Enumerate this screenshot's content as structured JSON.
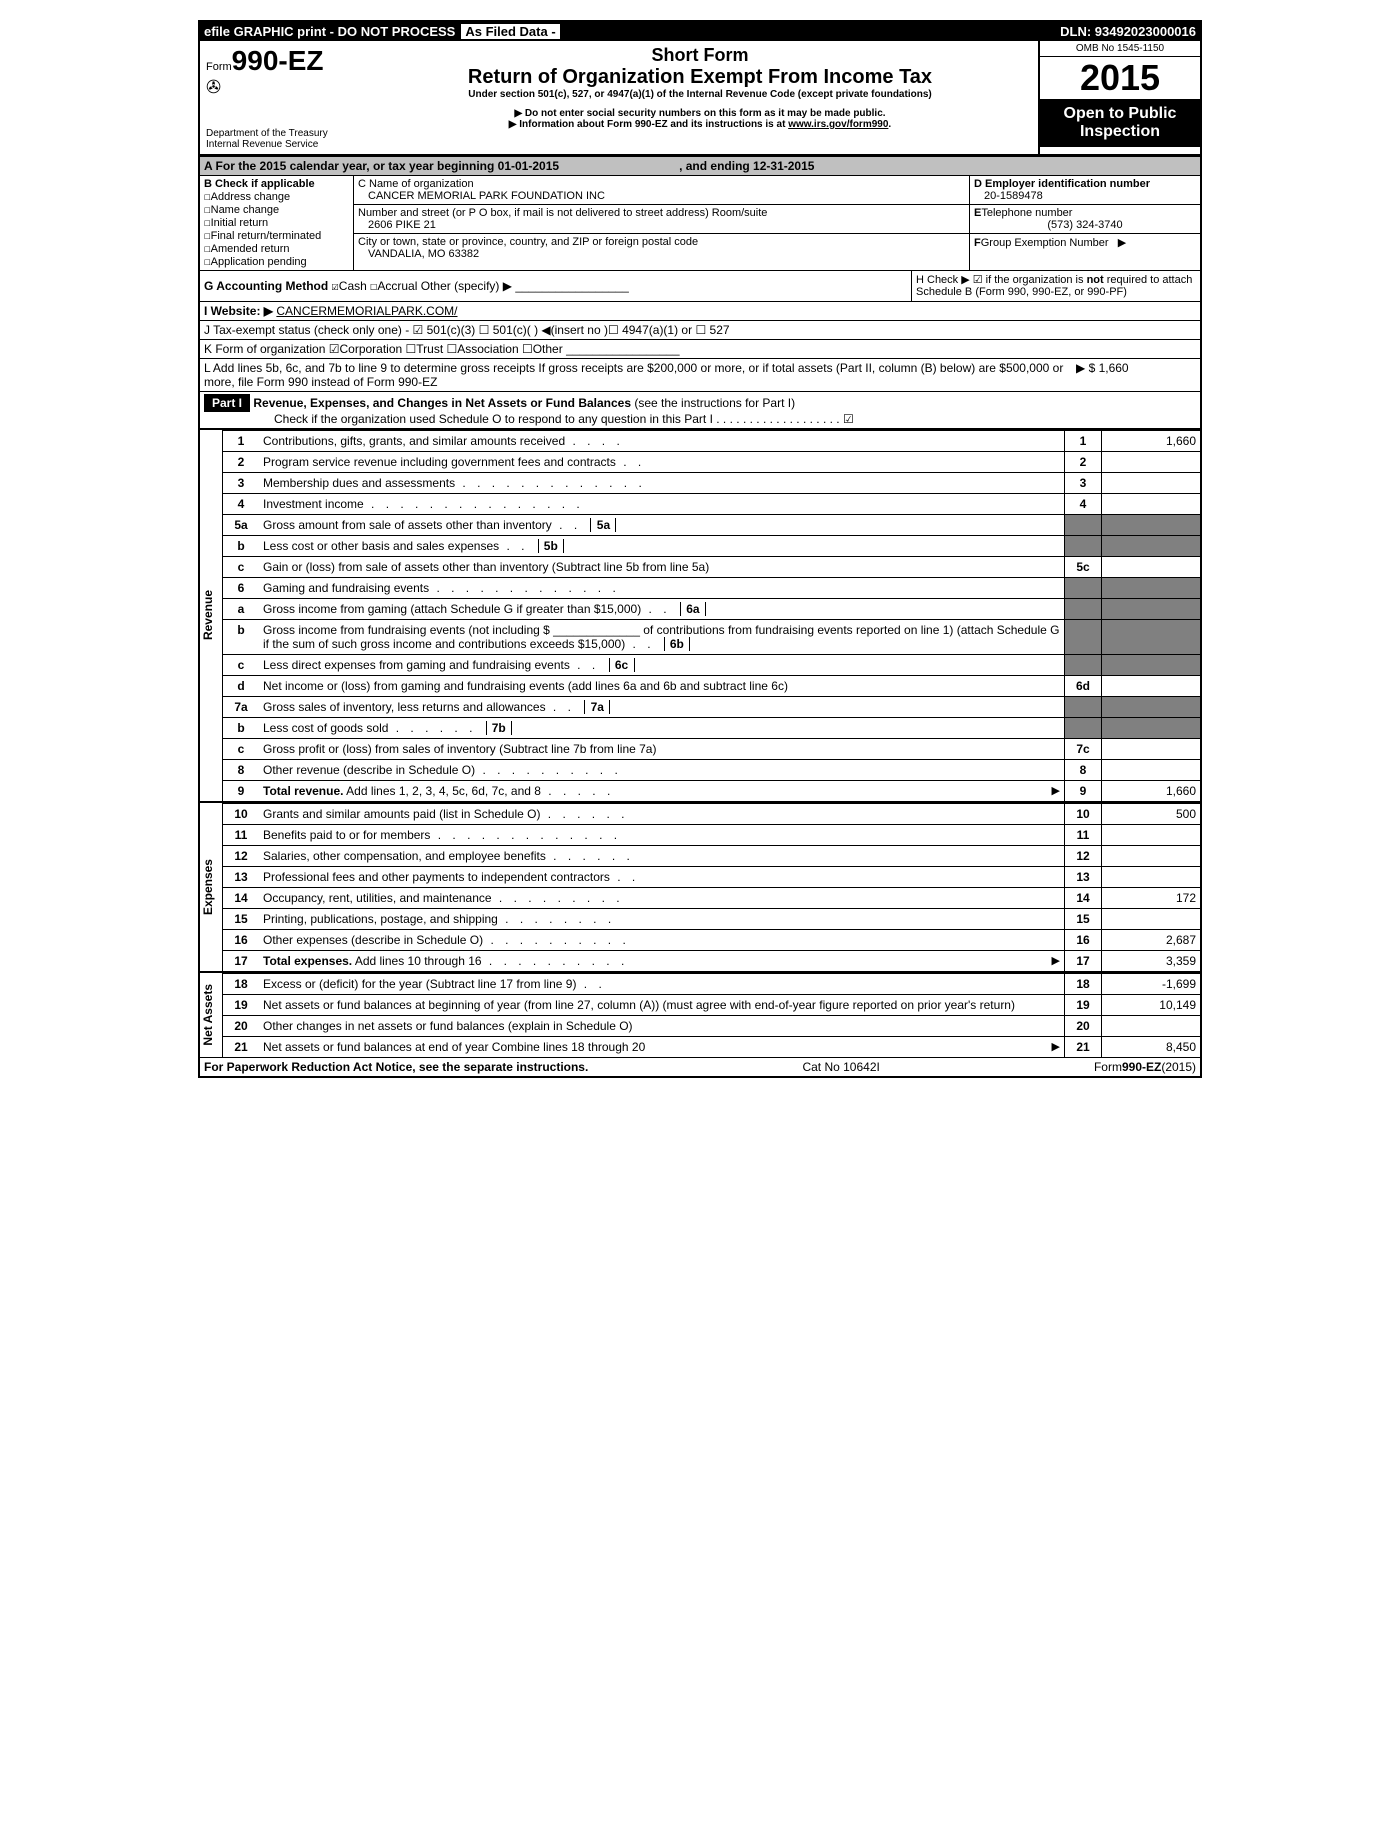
{
  "topbar": {
    "efile": "efile GRAPHIC print - DO NOT PROCESS",
    "asfiled": "As Filed Data -",
    "dln": "DLN: 93492023000016"
  },
  "header": {
    "form": "Form",
    "formno": "990-EZ",
    "dept": "Department of the Treasury",
    "irs": "Internal Revenue Service",
    "title": "Short Form",
    "subtitle": "Return of Organization Exempt From Income Tax",
    "section": "Under section 501(c), 527, or 4947(a)(1) of the Internal Revenue Code (except private foundations)",
    "warn1": "▶ Do not enter social security numbers on this form as it may be made public.",
    "warn2": "▶ Information about Form 990-EZ and its instructions is at ",
    "warn2link": "www.irs.gov/form990",
    "omb": "OMB No  1545-1150",
    "year": "2015",
    "inspect": "Open to Public Inspection"
  },
  "A": {
    "text": "A  For the 2015 calendar year, or tax year beginning 01-01-2015",
    "end": ", and ending 12-31-2015"
  },
  "B": {
    "hdr": "B  Check if applicable",
    "items": [
      "Address change",
      "Name change",
      "Initial return",
      "Final return/terminated",
      "Amended return",
      "Application pending"
    ]
  },
  "C": {
    "name_lbl": "C Name of organization",
    "name": "CANCER MEMORIAL PARK FOUNDATION INC",
    "addr_lbl": "Number and street (or P  O  box, if mail is not delivered to street address) Room/suite",
    "addr": "2606 PIKE 21",
    "city_lbl": "City or town, state or province, country, and ZIP or foreign postal code",
    "city": "VANDALIA, MO  63382"
  },
  "D": {
    "lbl": "D Employer identification number",
    "val": "20-1589478"
  },
  "E": {
    "lbl": "E",
    "lbl2": "Telephone number",
    "val": "(573) 324-3740"
  },
  "F": {
    "lbl": "F",
    "lbl2": "Group Exemption Number",
    "arrow": "▶"
  },
  "G": {
    "lbl": "G Accounting Method   ",
    "cash": "Cash",
    "accrual": "Accrual",
    "other": "  Other (specify) ▶"
  },
  "H": {
    "text": "H   Check ▶ ☑ if the organization is ",
    "not": "not",
    "text2": " required to attach Schedule B (Form 990, 990-EZ, or 990-PF)"
  },
  "I": {
    "lbl": "I Website: ▶",
    "val": "CANCERMEMORIALPARK.COM/"
  },
  "J": {
    "text": "J Tax-exempt status (check only one) - ☑ 501(c)(3)   ☐ 501(c)(  ) ◀(insert no )☐ 4947(a)(1) or ☐ 527"
  },
  "K": {
    "text": "K Form of organization   ☑Corporation  ☐Trust  ☐Association  ☐Other"
  },
  "L": {
    "text": "L Add lines 5b, 6c, and 7b to line 9 to determine gross receipts  If gross receipts are $200,000 or more, or if total assets (Part II, column (B) below) are $500,000 or more, file Form 990 instead of Form 990-EZ",
    "amt": "▶ $ 1,660"
  },
  "part1": {
    "label": "Part I",
    "title": "Revenue, Expenses, and Changes in Net Assets or Fund Balances",
    "hint": " (see the instructions for Part I)",
    "check": "Check if the organization used Schedule O to respond to any question in this Part I . . . . . . . . . . . . . . . . . . . ☑"
  },
  "sections": [
    {
      "label": "Revenue",
      "lines": [
        {
          "n": "1",
          "d": "Contributions, gifts, grants, and similar amounts received",
          "box": "1",
          "amt": "1,660"
        },
        {
          "n": "2",
          "d": "Program service revenue including government fees and contracts",
          "box": "2",
          "amt": ""
        },
        {
          "n": "3",
          "d": "Membership dues and assessments",
          "box": "3",
          "amt": ""
        },
        {
          "n": "4",
          "d": "Investment income",
          "box": "4",
          "amt": ""
        },
        {
          "n": "5a",
          "d": "Gross amount from sale of assets other than inventory",
          "ibox": "5a"
        },
        {
          "n": "b",
          "d": "Less  cost or other basis and sales expenses",
          "ibox": "5b"
        },
        {
          "n": "c",
          "d": "Gain or (loss) from sale of assets other than inventory (Subtract line 5b from line 5a)",
          "box": "5c",
          "amt": ""
        },
        {
          "n": "6",
          "d": "Gaming and fundraising events"
        },
        {
          "n": "a",
          "d": "Gross income from gaming (attach Schedule G if greater than $15,000)",
          "ibox": "6a"
        },
        {
          "n": "b",
          "d": "Gross income from fundraising events (not including $ _____________ of contributions from fundraising events reported on line 1) (attach Schedule G if the sum of such gross income and contributions exceeds $15,000)",
          "ibox": "6b"
        },
        {
          "n": "c",
          "d": "Less  direct expenses from gaming and fundraising events",
          "ibox": "6c"
        },
        {
          "n": "d",
          "d": "Net income or (loss) from gaming and fundraising events (add lines 6a and 6b and subtract line 6c)",
          "box": "6d",
          "amt": ""
        },
        {
          "n": "7a",
          "d": "Gross sales of inventory, less returns and allowances",
          "ibox": "7a"
        },
        {
          "n": "b",
          "d": "Less  cost of goods sold",
          "ibox": "7b"
        },
        {
          "n": "c",
          "d": "Gross profit or (loss) from sales of inventory (Subtract line 7b from line 7a)",
          "box": "7c",
          "amt": ""
        },
        {
          "n": "8",
          "d": "Other revenue (describe in Schedule O)",
          "box": "8",
          "amt": ""
        },
        {
          "n": "9",
          "d": "Total revenue. Add lines 1, 2, 3, 4, 5c, 6d, 7c, and 8",
          "box": "9",
          "amt": "1,660",
          "arrow": "▶",
          "bold": true
        }
      ]
    },
    {
      "label": "Expenses",
      "lines": [
        {
          "n": "10",
          "d": "Grants and similar amounts paid (list in Schedule O)",
          "box": "10",
          "amt": "500"
        },
        {
          "n": "11",
          "d": "Benefits paid to or for members",
          "box": "11",
          "amt": ""
        },
        {
          "n": "12",
          "d": "Salaries, other compensation, and employee benefits",
          "box": "12",
          "amt": ""
        },
        {
          "n": "13",
          "d": "Professional fees and other payments to independent contractors",
          "box": "13",
          "amt": ""
        },
        {
          "n": "14",
          "d": "Occupancy, rent, utilities, and maintenance",
          "box": "14",
          "amt": "172"
        },
        {
          "n": "15",
          "d": "Printing, publications, postage, and shipping",
          "box": "15",
          "amt": ""
        },
        {
          "n": "16",
          "d": "Other expenses (describe in Schedule O)",
          "box": "16",
          "amt": "2,687"
        },
        {
          "n": "17",
          "d": "Total expenses. Add lines 10 through 16",
          "box": "17",
          "amt": "3,359",
          "arrow": "▶",
          "bold": true
        }
      ]
    },
    {
      "label": "Net Assets",
      "lines": [
        {
          "n": "18",
          "d": "Excess or (deficit) for the year (Subtract line 17 from line 9)",
          "box": "18",
          "amt": "-1,699"
        },
        {
          "n": "19",
          "d": "Net assets or fund balances at beginning of year (from line 27, column (A)) (must agree with end-of-year figure reported on prior year's return)",
          "box": "19",
          "amt": "10,149"
        },
        {
          "n": "20",
          "d": "Other changes in net assets or fund balances (explain in Schedule O)",
          "box": "20",
          "amt": ""
        },
        {
          "n": "21",
          "d": "Net assets or fund balances at end of year  Combine lines 18 through 20",
          "box": "21",
          "amt": "8,450",
          "arrow": "▶"
        }
      ]
    }
  ],
  "footer": {
    "l": "For Paperwork Reduction Act Notice, see the separate instructions.",
    "c": "Cat No  10642I",
    "r": "Form",
    "rform": "990-EZ",
    "ryear": "(2015)"
  }
}
